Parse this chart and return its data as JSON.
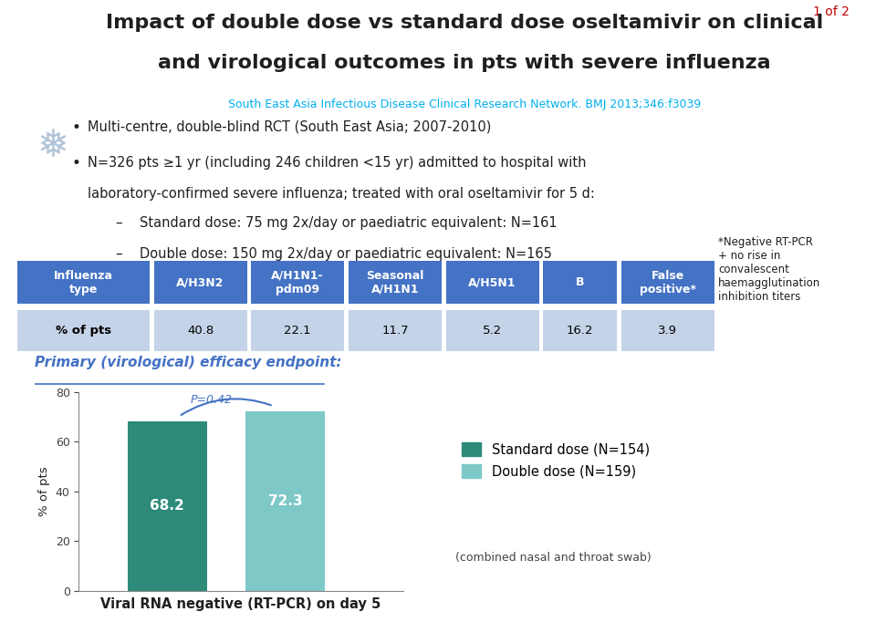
{
  "title_line1": "Impact of double dose vs standard dose oseltamivir on clinical",
  "title_line2": "and virological outcomes in pts with severe influenza",
  "subtitle": "South East Asia Infectious Disease Clinical Research Network. BMJ 2013;346:f3039",
  "page_label": "1 of 2",
  "bullet1": "Multi-centre, double-blind RCT (South East Asia; 2007-2010)",
  "bullet2a": "N=326 pts ≥1 yr (including 246 children <15 yr) admitted to hospital with",
  "bullet2b": "laboratory-confirmed severe influenza; treated with oral oseltamivir for 5 d:",
  "subbullet1": "Standard dose: 75 mg 2x/day or paediatric equivalent: N=161",
  "subbullet2": "Double dose: 150 mg 2x/day or paediatric equivalent: N=165",
  "table_header_bg": "#4472C4",
  "table_row_bg": "#C5D3E8",
  "table_header_text": "#FFFFFF",
  "table_row_text": "#000000",
  "table_cols": [
    "Influenza\ntype",
    "A/H3N2",
    "A/H1N1-\npdm09",
    "Seasonal\nA/H1N1",
    "A/H5N1",
    "B",
    "False\npositive*"
  ],
  "table_values": [
    "% of pts",
    "40.8",
    "22.1",
    "11.7",
    "5.2",
    "16.2",
    "3.9"
  ],
  "footnote": "*Negative RT-PCR\n+ no rise in\nconvalescent\nhaemagglutination\ninhibition titers",
  "primary_endpoint_label": "Primary (virological) efficacy endpoint:",
  "bar_values": [
    68.2,
    72.3
  ],
  "bar_colors": [
    "#2E8B7A",
    "#7EC8C8"
  ],
  "bar_labels": [
    "Standard dose (N=154)",
    "Double dose (N=159)"
  ],
  "bar_xlabel": "Viral RNA negative (RT-PCR) on day 5",
  "bar_xlabel2": "(combined nasal and throat swab)",
  "bar_ylabel": "% of pts",
  "bar_ylim": [
    0,
    80
  ],
  "bar_yticks": [
    0,
    20,
    40,
    60,
    80
  ],
  "pvalue_text": "P=0.42",
  "title_color": "#1F1F1F",
  "subtitle_color": "#00B0F0",
  "primary_endpoint_color": "#4472C4",
  "background_color": "#FFFFFF",
  "col_widths": [
    1.4,
    1.0,
    1.0,
    1.0,
    1.0,
    0.8,
    1.0
  ]
}
